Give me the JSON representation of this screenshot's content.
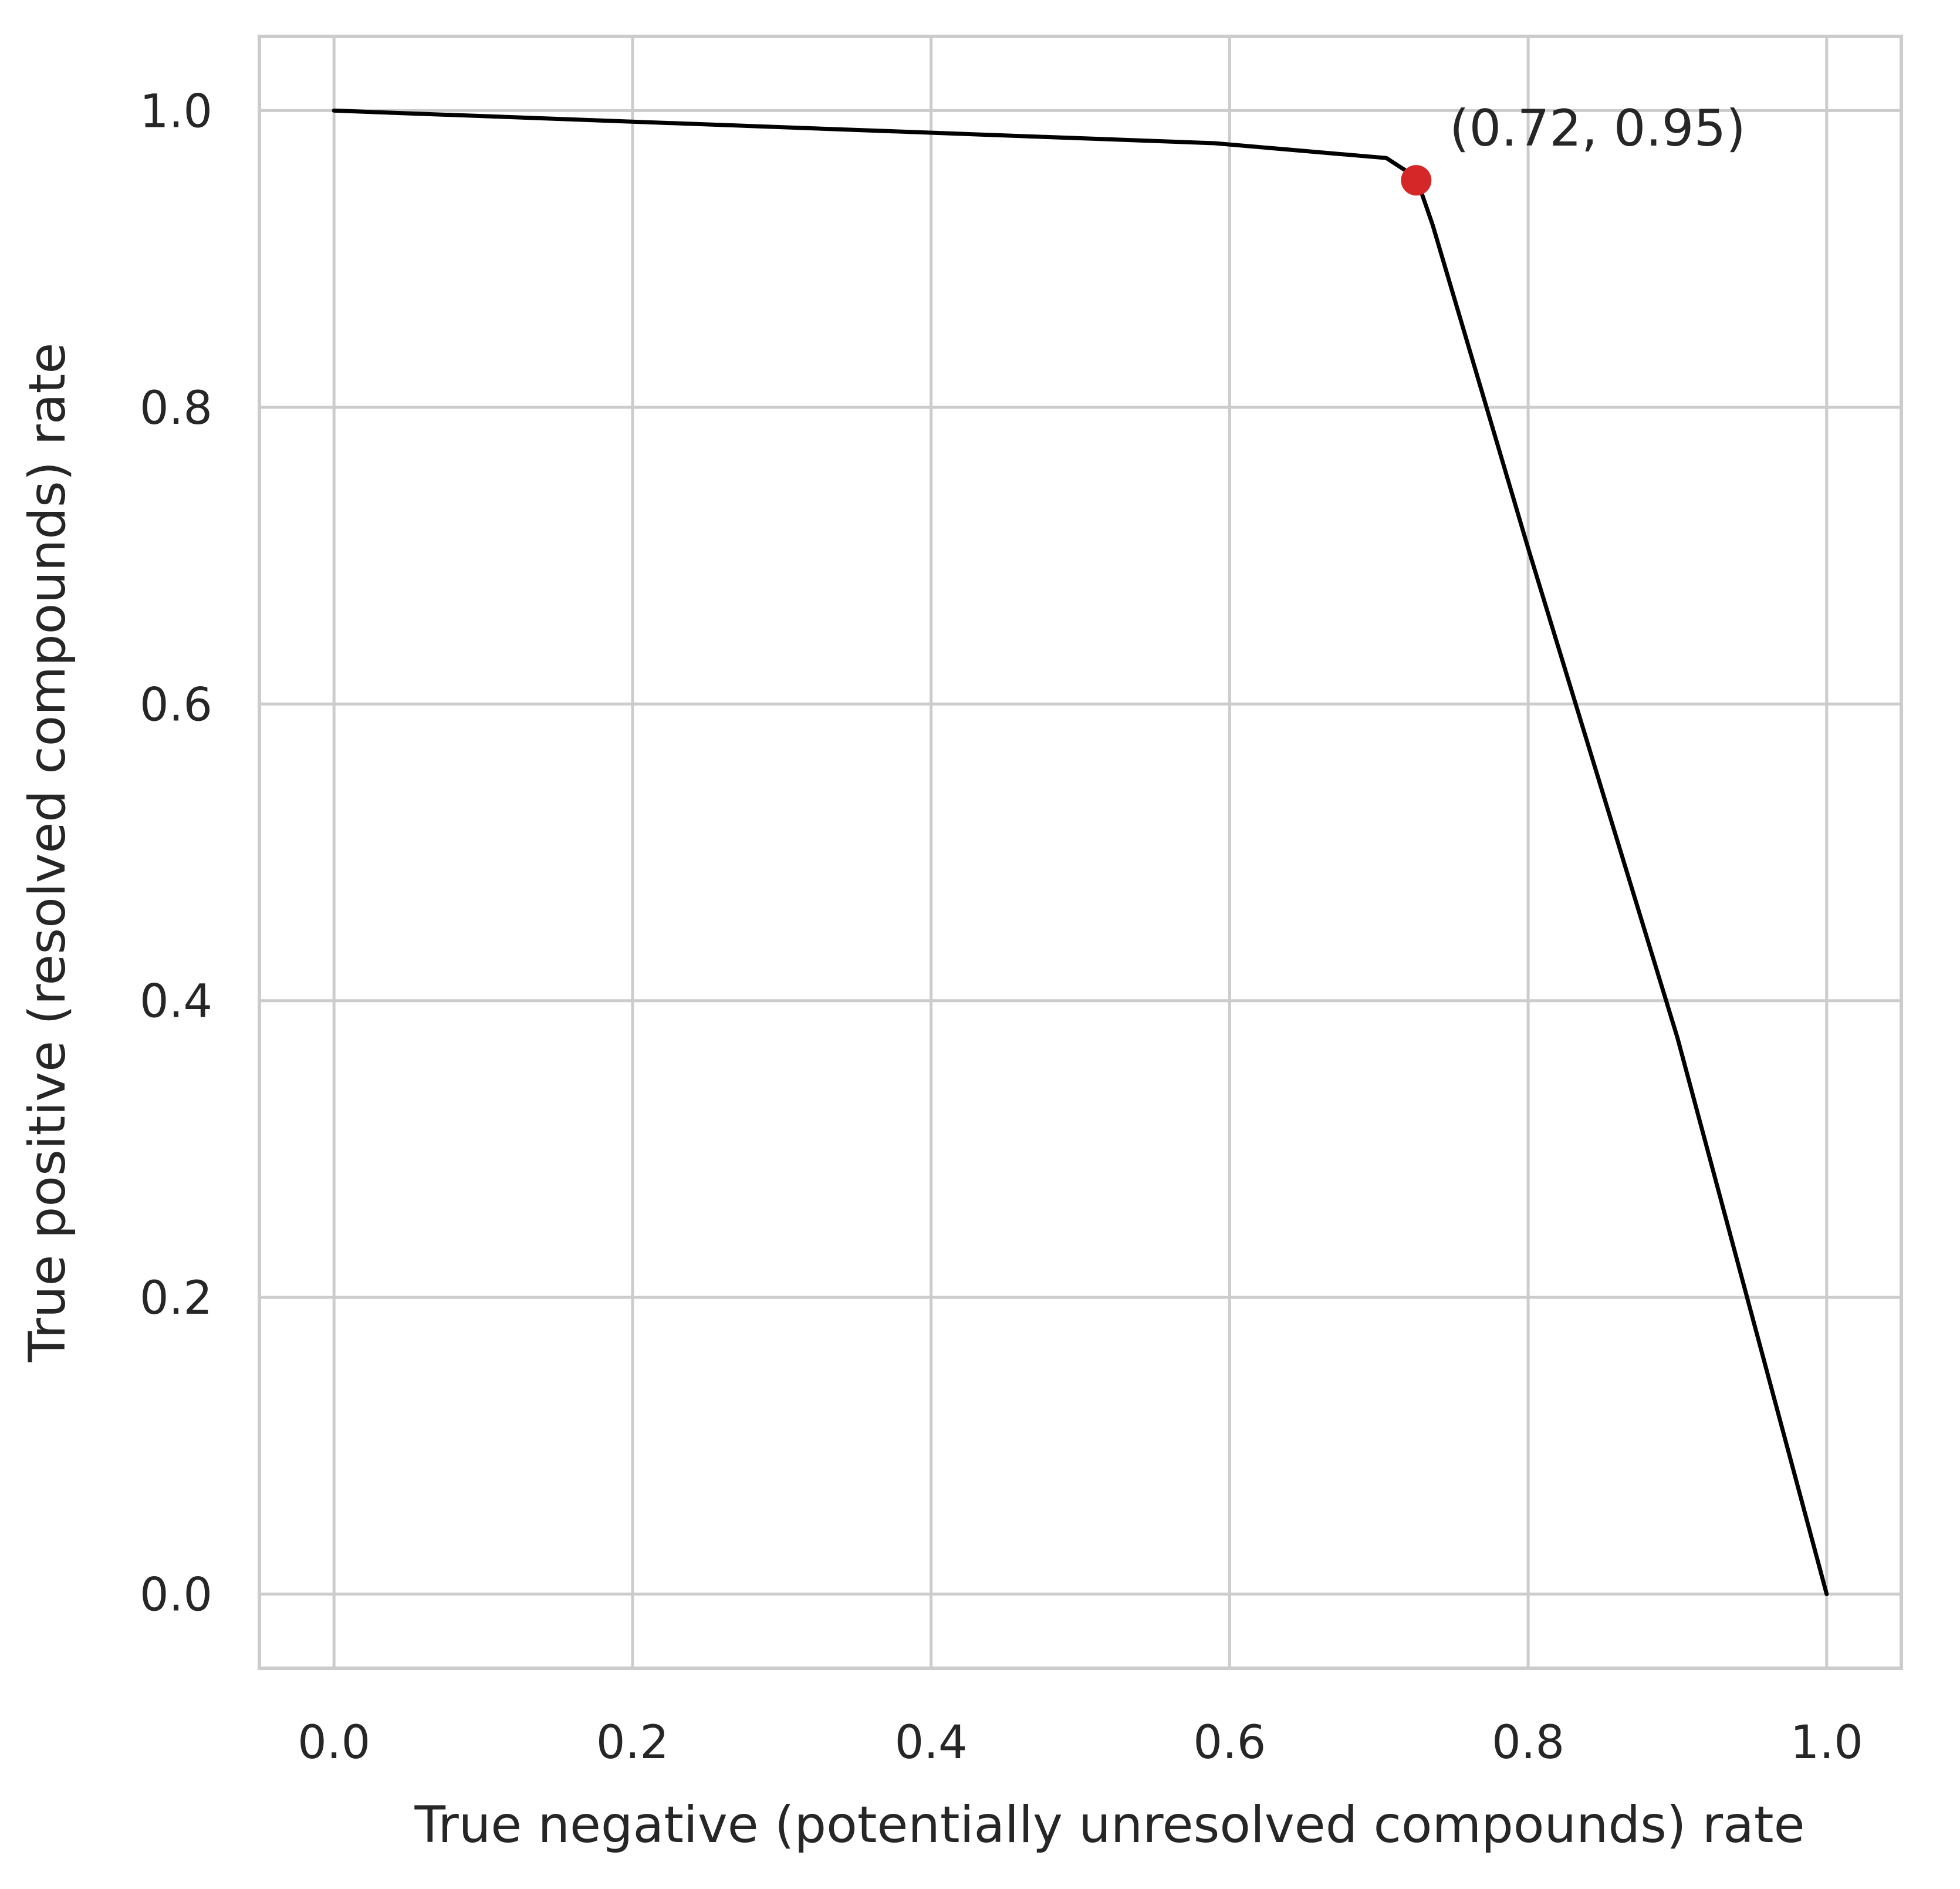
{
  "chart_data": {
    "type": "line",
    "title": "",
    "xlabel": "True negative (potentially unresolved compounds) rate",
    "ylabel": "True positive (resolved compounds) rate",
    "xlim": [
      -0.05,
      1.05
    ],
    "ylim": [
      -0.05,
      1.05
    ],
    "xticks": [
      0.0,
      0.2,
      0.4,
      0.6,
      0.8,
      1.0
    ],
    "yticks": [
      0.0,
      0.2,
      0.4,
      0.6,
      0.8,
      1.0
    ],
    "xtick_labels": [
      "0.0",
      "0.2",
      "0.4",
      "0.6",
      "0.8",
      "1.0"
    ],
    "ytick_labels": [
      "0.0",
      "0.2",
      "0.4",
      "0.6",
      "0.8",
      "1.0"
    ],
    "grid": true,
    "series": [
      {
        "color": "#000000",
        "points": [
          [
            0.0,
            1.0
          ],
          [
            0.59,
            0.978
          ],
          [
            0.705,
            0.968
          ],
          [
            0.725,
            0.955
          ],
          [
            0.736,
            0.923
          ],
          [
            0.8,
            0.705
          ],
          [
            0.9,
            0.375
          ],
          [
            1.0,
            0.0
          ]
        ]
      }
    ],
    "highlight_point": {
      "x": 0.725,
      "y": 0.953,
      "color": "#d62728",
      "label": "(0.72, 0.95)"
    }
  }
}
